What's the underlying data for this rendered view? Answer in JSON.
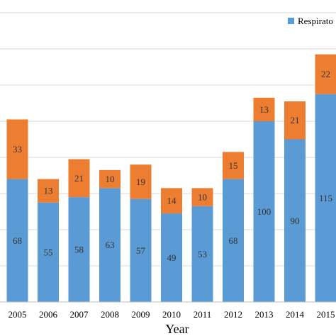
{
  "chart_data": {
    "type": "bar",
    "stacked": true,
    "categories": [
      "2005",
      "2006",
      "2007",
      "2008",
      "2009",
      "2010",
      "2011",
      "2012",
      "2013",
      "2014",
      "2015"
    ],
    "series": [
      {
        "name": "Respirato",
        "color": "#5B9BD5",
        "values": [
          68,
          55,
          58,
          63,
          57,
          49,
          53,
          68,
          100,
          90,
          115
        ]
      },
      {
        "name": "",
        "color": "#ED7D31",
        "values": [
          33,
          13,
          21,
          10,
          19,
          14,
          10,
          15,
          13,
          21,
          22
        ]
      }
    ],
    "xlabel": "Year",
    "ylabel": "",
    "ylim": [
      0,
      160
    ],
    "grid": true,
    "legend": "top-right"
  }
}
